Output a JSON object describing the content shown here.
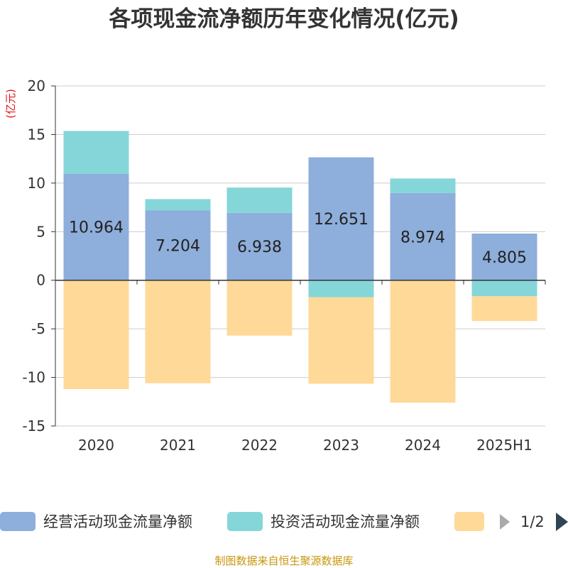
{
  "title": "各项现金流净额历年变化情况(亿元)",
  "unit_label": "(亿元)",
  "source": "制图数据来自恒生聚源数据库",
  "legend": {
    "page_indicator": "1/2",
    "prev_icon": "triangle-left-icon",
    "next_icon": "triangle-right-icon"
  },
  "colors": {
    "operating": "#8eaedb",
    "investing": "#85d6d9",
    "third": "#ffd998",
    "grid": "#cccccc",
    "axis": "#333333",
    "unit": "#e0141d",
    "source": "#c8960c",
    "pager_inactive": "#aaaaaa",
    "pager_active": "#2f4554"
  },
  "chart_data": {
    "type": "bar",
    "stacked": true,
    "categories": [
      "2020",
      "2021",
      "2022",
      "2023",
      "2024",
      "2025H1"
    ],
    "ylim": [
      -15,
      20
    ],
    "yticks": [
      20,
      15,
      10,
      5,
      0,
      -5,
      -10,
      -15
    ],
    "grid": true,
    "legend_position": "bottom",
    "series": [
      {
        "name": "经营活动现金流量净额",
        "color_key": "operating",
        "values": [
          10.964,
          7.204,
          6.938,
          12.651,
          8.974,
          4.805
        ],
        "labels": [
          "10.964",
          "7.204",
          "6.938",
          "12.651",
          "8.974",
          "4.805"
        ]
      },
      {
        "name": "投资活动现金流量净额",
        "color_key": "investing",
        "values": [
          4.4,
          1.15,
          2.6,
          -1.75,
          1.5,
          -1.65
        ]
      },
      {
        "name": "",
        "color_key": "third",
        "values": [
          -11.2,
          -10.6,
          -5.7,
          -8.9,
          -12.6,
          -2.55
        ]
      }
    ]
  }
}
